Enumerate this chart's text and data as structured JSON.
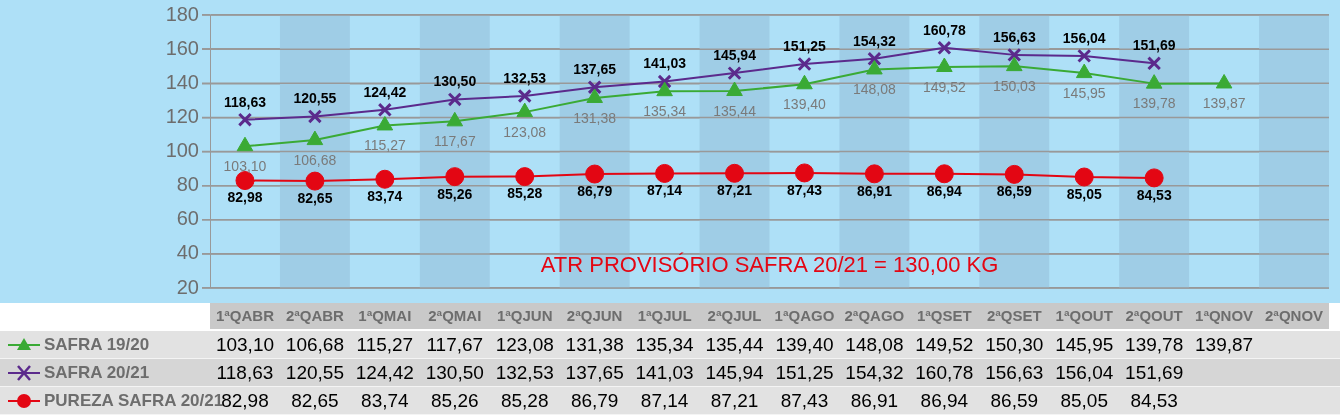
{
  "chart_data": [
    {
      "type": "line",
      "categories": [
        "1ªQABR",
        "2ªQABR",
        "1ªQMAI",
        "2ªQMAI",
        "1ªQJUN",
        "2ªQJUN",
        "1ªQJUL",
        "2ªQJUL",
        "1ªQAGO",
        "2ªQAGO",
        "1ªQSET",
        "2ªQSET",
        "1ªQOUT",
        "2ªQOUT",
        "1ªQNOV",
        "2ªQNOV"
      ],
      "series": [
        {
          "color": "#3aaa35",
          "marker": "triangle",
          "values": [
            103.1,
            106.68,
            115.27,
            117.67,
            123.08,
            131.38,
            135.34,
            135.44,
            139.4,
            148.08,
            149.52,
            150.03,
            145.95,
            139.78,
            139.87,
            null
          ],
          "value_labels": [
            "103,10",
            "106,68",
            "115,27",
            "117,67",
            "123,08",
            "131,38",
            "135,34",
            "135,44",
            "139,40",
            "148,08",
            "149,52",
            "150,03",
            "145,95",
            "139,78",
            "139,87",
            null
          ]
        },
        {
          "color": "#5b2a8c",
          "marker": "cross",
          "values": [
            118.63,
            120.55,
            124.42,
            130.5,
            132.53,
            137.65,
            141.03,
            145.94,
            151.25,
            154.32,
            160.78,
            156.63,
            156.04,
            151.69,
            null,
            null
          ],
          "value_labels": [
            "118,63",
            "120,55",
            "124,42",
            "130,50",
            "132,53",
            "137,65",
            "141,03",
            "145,94",
            "151,25",
            "154,32",
            "160,78",
            "156,63",
            "156,04",
            "151,69",
            null,
            null
          ]
        },
        {
          "color": "#e30613",
          "marker": "circle",
          "values": [
            82.98,
            82.65,
            83.74,
            85.26,
            85.28,
            86.79,
            87.14,
            87.21,
            87.43,
            86.91,
            86.94,
            86.59,
            85.05,
            84.53,
            null,
            null
          ],
          "value_labels": [
            "82,98",
            "82,65",
            "83,74",
            "85,26",
            "85,28",
            "86,79",
            "87,14",
            "87,21",
            "87,43",
            "86,91",
            "86,94",
            "86,59",
            "85,05",
            "84,53",
            null,
            null
          ]
        }
      ],
      "ylim": [
        20,
        180
      ],
      "yticks": [
        20,
        40,
        60,
        80,
        100,
        120,
        140,
        160,
        180
      ],
      "grid": "y",
      "tick_labels": "y",
      "bands": [
        {
          "axis": "x",
          "from": "2ªQABR",
          "to": "2ªQABR",
          "color": "#9fcde6"
        },
        {
          "axis": "x",
          "from": "2ªQMAI",
          "to": "2ªQMAI",
          "color": "#9fcde6"
        },
        {
          "axis": "x",
          "from": "2ªQJUN",
          "to": "2ªQJUN",
          "color": "#9fcde6"
        },
        {
          "axis": "x",
          "from": "2ªQJUL",
          "to": "2ªQJUL",
          "color": "#9fcde6"
        },
        {
          "axis": "x",
          "from": "2ªQAGO",
          "to": "2ªQAGO",
          "color": "#9fcde6"
        },
        {
          "axis": "x",
          "from": "2ªQSET",
          "to": "2ªQSET",
          "color": "#9fcde6"
        },
        {
          "axis": "x",
          "from": "2ªQOUT",
          "to": "2ªQOUT",
          "color": "#9fcde6"
        },
        {
          "axis": "x",
          "from": "2ªQNOV",
          "to": "2ªQNOV",
          "color": "#9fcde6"
        }
      ],
      "annotations": [
        "ATR PROVISÓRIO SAFRA 20/21 = 130,00 KG"
      ]
    },
    {
      "type": "other",
      "categories": [
        "1ªQABR",
        "2ªQABR",
        "1ªQMAI",
        "2ªQMAI",
        "1ªQJUN",
        "2ªQJUN",
        "1ªQJUL",
        "2ªQJUL",
        "1ªQAGO",
        "2ªQAGO",
        "1ªQSET",
        "2ªQSET",
        "1ªQOUT",
        "2ªQOUT",
        "1ªQNOV",
        "2ªQNOV"
      ],
      "series": [
        {
          "name": "SAFRA 19/20",
          "color": "#3aaa35",
          "marker": "triangle",
          "values": [
            103.1,
            106.68,
            115.27,
            117.67,
            123.08,
            131.38,
            135.34,
            135.44,
            139.4,
            148.08,
            149.52,
            150.3,
            145.95,
            139.78,
            139.87,
            null
          ],
          "value_labels": [
            "103,10",
            "106,68",
            "115,27",
            "117,67",
            "123,08",
            "131,38",
            "135,34",
            "135,44",
            "139,40",
            "148,08",
            "149,52",
            "150,30",
            "145,95",
            "139,78",
            "139,87",
            null
          ]
        },
        {
          "name": "SAFRA 20/21",
          "color": "#5b2a8c",
          "marker": "cross",
          "values": [
            118.63,
            120.55,
            124.42,
            130.5,
            132.53,
            137.65,
            141.03,
            145.94,
            151.25,
            154.32,
            160.78,
            156.63,
            156.04,
            151.69,
            null,
            null
          ],
          "value_labels": [
            "118,63",
            "120,55",
            "124,42",
            "130,50",
            "132,53",
            "137,65",
            "141,03",
            "145,94",
            "151,25",
            "154,32",
            "160,78",
            "156,63",
            "156,04",
            "151,69",
            null,
            null
          ]
        },
        {
          "name": "PUREZA SAFRA 20/21",
          "color": "#e30613",
          "marker": "circle",
          "values": [
            82.98,
            82.65,
            83.74,
            85.26,
            85.28,
            86.79,
            87.14,
            87.21,
            87.43,
            86.91,
            86.94,
            86.59,
            85.05,
            84.53,
            null,
            null
          ],
          "value_labels": [
            "82,98",
            "82,65",
            "83,74",
            "85,26",
            "85,28",
            "86,79",
            "87,14",
            "87,21",
            "87,43",
            "86,91",
            "86,94",
            "86,59",
            "85,05",
            "84,53",
            null,
            null
          ]
        }
      ],
      "legend": "left"
    }
  ]
}
